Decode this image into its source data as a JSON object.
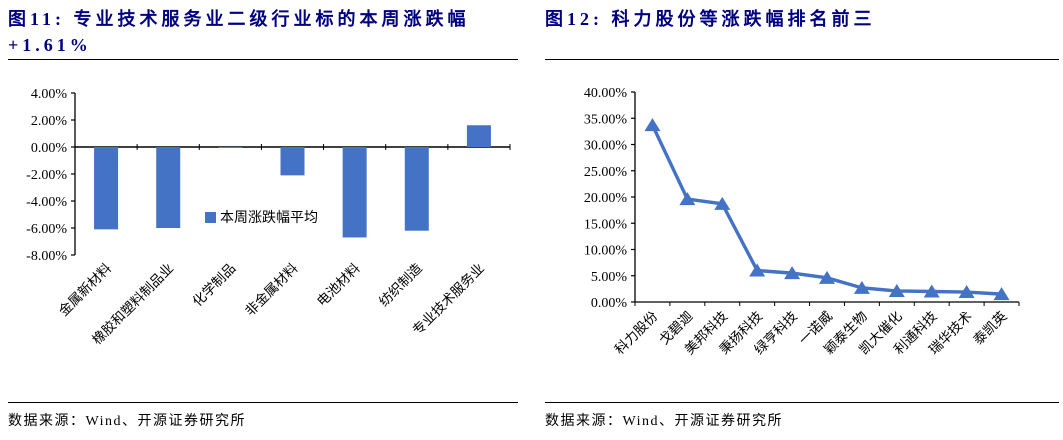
{
  "colors": {
    "title_navy": "#000080",
    "series_blue": "#4472C4",
    "axis_black": "#000000"
  },
  "figures": [
    {
      "id": "fig11",
      "title_lines": [
        "图11: 专业技术服务业二级行业标的本周涨跌幅",
        "+1.61%"
      ],
      "source": "数据来源：Wind、开源证券研究所"
    },
    {
      "id": "fig12",
      "title_lines": [
        "图12: 科力股份等涨跌幅排名前三"
      ],
      "source": "数据来源：Wind、开源证券研究所"
    }
  ],
  "chart_data": [
    {
      "type": "bar",
      "title": "图11: 专业技术服务业二级行业标的本周涨跌幅+1.61%",
      "categories": [
        "金属新材料",
        "橡胶和塑料制品业",
        "化学制品",
        "非金属材料",
        "电池材料",
        "纺织制造",
        "专业技术服务业"
      ],
      "values": [
        -6.1,
        -6.0,
        0.0,
        -2.1,
        -6.7,
        -6.2,
        1.61
      ],
      "legend": [
        "本周涨跌幅平均"
      ],
      "legend_position": "inside-center",
      "xlabel": "",
      "ylabel": "",
      "ylim": [
        -8,
        4
      ],
      "ytick_step": 2,
      "ytick_format": "0.00%",
      "bar_color": "#4472C4",
      "grid": false,
      "x_label_rotation": -45
    },
    {
      "type": "line",
      "title": "图12: 科力股份等涨跌幅排名前三",
      "categories": [
        "科力股份",
        "戈碧迦",
        "美邦科技",
        "秉扬科技",
        "绿亨科技",
        "一诺威",
        "颖泰生物",
        "凯大催化",
        "利通科技",
        "瑞华技术",
        "泰凯英"
      ],
      "values": [
        33.7,
        19.6,
        18.7,
        6.0,
        5.5,
        4.6,
        2.7,
        2.1,
        2.0,
        1.9,
        1.5
      ],
      "marker": "triangle-up",
      "line_color": "#4472C4",
      "xlabel": "",
      "ylabel": "",
      "ylim": [
        0,
        40
      ],
      "ytick_step": 5,
      "ytick_format": "0.00%",
      "grid": false,
      "legend_position": "none",
      "x_label_rotation": -45
    }
  ]
}
